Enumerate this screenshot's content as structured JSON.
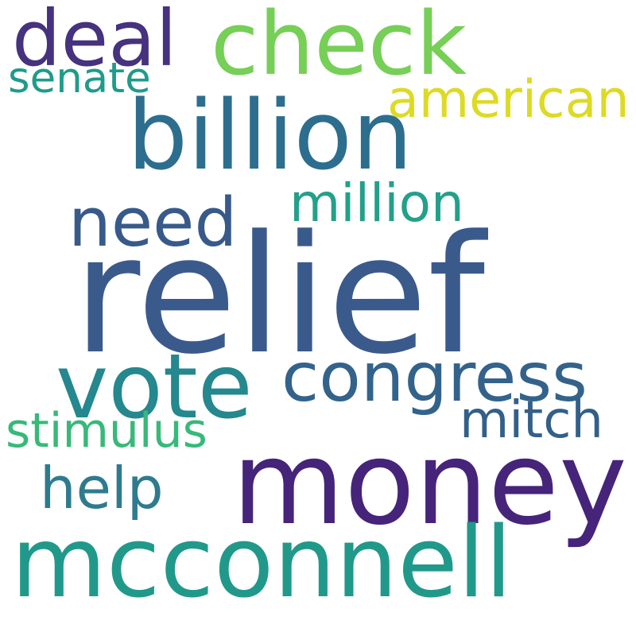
{
  "words": {
    "relief": "relief",
    "money": "money",
    "billion": "billion",
    "mcconnell": "mcconnell",
    "check": "check",
    "vote": "vote",
    "congress": "congress",
    "deal": "deal",
    "need": "need",
    "million": "million",
    "american": "american",
    "mitch": "mitch",
    "help": "help",
    "stimulus": "stimulus",
    "senate": "senate"
  },
  "colors": {
    "background": "#ffffff",
    "relief": "#3b5a8c",
    "money": "#46247a",
    "billion": "#2d6e8e",
    "mcconnell": "#21998a",
    "check": "#76cf56",
    "vote": "#24888e",
    "congress": "#33638b",
    "deal": "#46327e",
    "need": "#385a8a",
    "million": "#23a08a",
    "american": "#ddda25",
    "mitch": "#33608a",
    "help": "#2e7b8e",
    "stimulus": "#37b979",
    "senate": "#1f9b8a"
  }
}
